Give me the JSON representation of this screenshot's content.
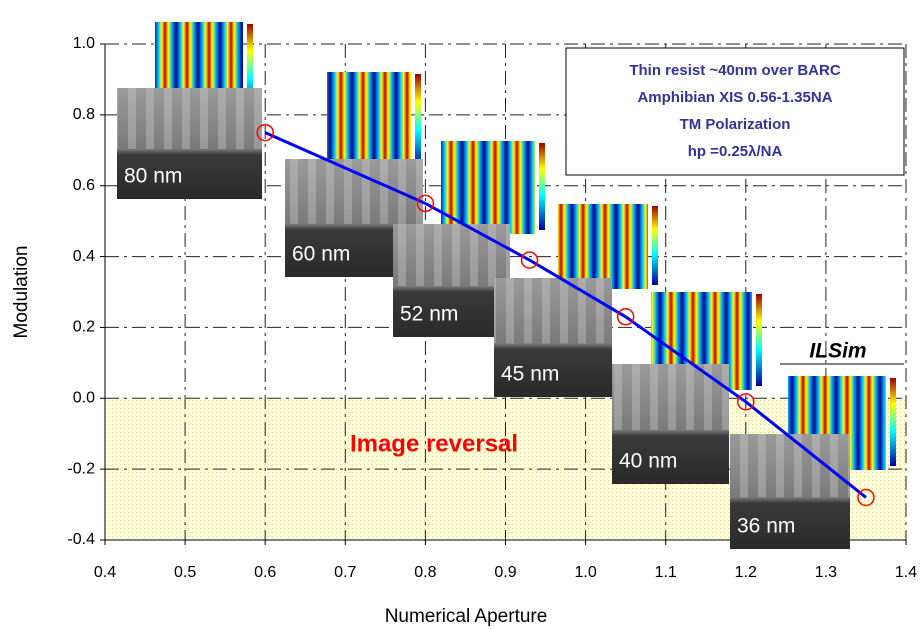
{
  "chart_data": {
    "type": "line",
    "x": [
      0.6,
      0.8,
      0.93,
      1.05,
      1.2,
      1.35
    ],
    "values": [
      0.75,
      0.55,
      0.39,
      0.23,
      -0.01,
      -0.28
    ],
    "color": "#0000ff",
    "marker_color": "#ff0000",
    "xlabel": "Numerical Aperture",
    "ylabel": "Modulation",
    "xlim": [
      0.4,
      1.4
    ],
    "ylim": [
      -0.4,
      1.0
    ],
    "xticks": [
      0.4,
      0.5,
      0.6,
      0.7,
      0.8,
      0.9,
      {
        "value": 1,
        "label": "1.0"
      },
      1.1,
      1.2,
      1.3,
      1.4
    ],
    "yticks": [
      -0.4,
      -0.2,
      {
        "value": 0,
        "label": "0.0"
      },
      0.2,
      0.4,
      0.6,
      0.8,
      {
        "value": 1,
        "label": "1.0"
      }
    ],
    "grid": true,
    "info_box": [
      "Thin resist ~40nm over BARC",
      "Amphibian XIS 0.56-1.35NA",
      "TM Polarization",
      "hp =0.25λ/NA"
    ],
    "region_label": "Image reversal",
    "sim_label": "ILSim",
    "image_labels": [
      "80 nm",
      "60 nm",
      "52 nm",
      "45 nm",
      "40 nm",
      "36 nm"
    ]
  }
}
